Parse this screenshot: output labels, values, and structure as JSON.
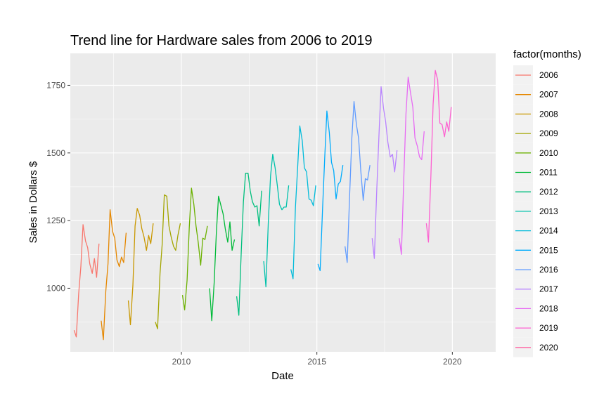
{
  "chart_data": {
    "type": "line",
    "title": "Trend line for Hardware sales from 2006 to 2019",
    "xlabel": "Date",
    "ylabel": "Sales in Dollars $",
    "xlim": [
      2005.9,
      2021.6
    ],
    "ylim": [
      765,
      1868
    ],
    "x_ticks": [
      2010,
      2015,
      2020
    ],
    "y_ticks": [
      1000,
      1250,
      1500,
      1750
    ],
    "x_tick_labels": [
      "2010",
      "2015",
      "2020"
    ],
    "y_tick_labels": [
      "1000",
      "1250",
      "1500",
      "1750"
    ],
    "grid": true,
    "background": "#ebebeb",
    "legend": {
      "title": "factor(months)",
      "position": "right"
    },
    "series": [
      {
        "name": "2006",
        "color": "#F8766D",
        "x": [
          2006.04,
          2006.12,
          2006.21,
          2006.29,
          2006.37,
          2006.46,
          2006.54,
          2006.62,
          2006.71,
          2006.79,
          2006.87,
          2006.96
        ],
        "y": [
          845,
          820,
          980,
          1080,
          1235,
          1175,
          1150,
          1090,
          1055,
          1110,
          1040,
          1165
        ]
      },
      {
        "name": "2007",
        "color": "#E58700",
        "x": [
          2007.04,
          2007.12,
          2007.21,
          2007.29,
          2007.37,
          2007.46,
          2007.54,
          2007.62,
          2007.71,
          2007.79,
          2007.87,
          2007.96
        ],
        "y": [
          880,
          810,
          990,
          1090,
          1290,
          1210,
          1185,
          1105,
          1080,
          1115,
          1095,
          1205
        ]
      },
      {
        "name": "2008",
        "color": "#C99800",
        "x": [
          2008.04,
          2008.12,
          2008.21,
          2008.29,
          2008.37,
          2008.46,
          2008.54,
          2008.62,
          2008.71,
          2008.79,
          2008.87,
          2008.96
        ],
        "y": [
          955,
          865,
          1010,
          1230,
          1295,
          1270,
          1220,
          1190,
          1140,
          1195,
          1165,
          1240
        ]
      },
      {
        "name": "2009",
        "color": "#A3A500",
        "x": [
          2009.04,
          2009.12,
          2009.21,
          2009.29,
          2009.37,
          2009.46,
          2009.54,
          2009.62,
          2009.71,
          2009.79,
          2009.87,
          2009.96
        ],
        "y": [
          875,
          850,
          1055,
          1160,
          1345,
          1340,
          1230,
          1190,
          1155,
          1140,
          1195,
          1240
        ]
      },
      {
        "name": "2010",
        "color": "#6BB100",
        "x": [
          2010.04,
          2010.12,
          2010.21,
          2010.29,
          2010.37,
          2010.46,
          2010.54,
          2010.62,
          2010.71,
          2010.79,
          2010.87,
          2010.96
        ],
        "y": [
          975,
          920,
          1030,
          1225,
          1370,
          1310,
          1230,
          1170,
          1085,
          1185,
          1180,
          1230
        ]
      },
      {
        "name": "2011",
        "color": "#00BA38",
        "x": [
          2011.04,
          2011.12,
          2011.21,
          2011.29,
          2011.37,
          2011.46,
          2011.54,
          2011.62,
          2011.71,
          2011.79,
          2011.87,
          2011.96
        ],
        "y": [
          1000,
          880,
          1020,
          1205,
          1340,
          1305,
          1275,
          1220,
          1170,
          1245,
          1140,
          1180
        ]
      },
      {
        "name": "2012",
        "color": "#00BF7D",
        "x": [
          2012.04,
          2012.12,
          2012.21,
          2012.29,
          2012.37,
          2012.46,
          2012.54,
          2012.62,
          2012.71,
          2012.79,
          2012.87,
          2012.96
        ],
        "y": [
          970,
          900,
          1140,
          1320,
          1425,
          1425,
          1360,
          1320,
          1300,
          1305,
          1230,
          1360
        ]
      },
      {
        "name": "2013",
        "color": "#00C1AB",
        "x": [
          2013.04,
          2013.12,
          2013.21,
          2013.29,
          2013.37,
          2013.46,
          2013.54,
          2013.62,
          2013.71,
          2013.79,
          2013.87,
          2013.96
        ],
        "y": [
          1100,
          1005,
          1250,
          1415,
          1495,
          1445,
          1380,
          1310,
          1290,
          1300,
          1300,
          1380
        ]
      },
      {
        "name": "2014",
        "color": "#00BBDA",
        "x": [
          2014.04,
          2014.12,
          2014.21,
          2014.29,
          2014.37,
          2014.46,
          2014.54,
          2014.62,
          2014.71,
          2014.79,
          2014.87,
          2014.96
        ],
        "y": [
          1070,
          1035,
          1300,
          1445,
          1600,
          1545,
          1445,
          1430,
          1330,
          1325,
          1305,
          1380
        ]
      },
      {
        "name": "2015",
        "color": "#00ACFC",
        "x": [
          2015.04,
          2015.12,
          2015.21,
          2015.29,
          2015.37,
          2015.46,
          2015.54,
          2015.62,
          2015.71,
          2015.79,
          2015.87,
          2015.96
        ],
        "y": [
          1090,
          1065,
          1295,
          1480,
          1655,
          1575,
          1465,
          1435,
          1330,
          1385,
          1395,
          1455
        ]
      },
      {
        "name": "2016",
        "color": "#619CFF",
        "x": [
          2016.04,
          2016.12,
          2016.21,
          2016.29,
          2016.37,
          2016.46,
          2016.54,
          2016.62,
          2016.71,
          2016.79,
          2016.87,
          2016.96
        ],
        "y": [
          1155,
          1095,
          1345,
          1555,
          1690,
          1605,
          1555,
          1435,
          1325,
          1405,
          1400,
          1455
        ]
      },
      {
        "name": "2017",
        "color": "#B983FF",
        "x": [
          2017.04,
          2017.12,
          2017.21,
          2017.29,
          2017.37,
          2017.46,
          2017.54,
          2017.62,
          2017.71,
          2017.79,
          2017.87,
          2017.96
        ],
        "y": [
          1185,
          1110,
          1360,
          1560,
          1745,
          1665,
          1615,
          1540,
          1485,
          1495,
          1430,
          1510
        ]
      },
      {
        "name": "2018",
        "color": "#E76BF3",
        "x": [
          2018.04,
          2018.12,
          2018.21,
          2018.29,
          2018.37,
          2018.46,
          2018.54,
          2018.62,
          2018.71,
          2018.79,
          2018.87,
          2018.96
        ],
        "y": [
          1185,
          1125,
          1415,
          1645,
          1780,
          1720,
          1670,
          1555,
          1525,
          1485,
          1475,
          1580
        ]
      },
      {
        "name": "2019",
        "color": "#FD61D1",
        "x": [
          2019.04,
          2019.12,
          2019.21,
          2019.29,
          2019.37,
          2019.46,
          2019.54,
          2019.62,
          2019.71,
          2019.79,
          2019.87,
          2019.96
        ],
        "y": [
          1240,
          1170,
          1420,
          1680,
          1805,
          1770,
          1610,
          1605,
          1560,
          1615,
          1580,
          1670
        ]
      },
      {
        "name": "2020",
        "color": "#FF67A4",
        "x": [],
        "y": []
      }
    ]
  }
}
